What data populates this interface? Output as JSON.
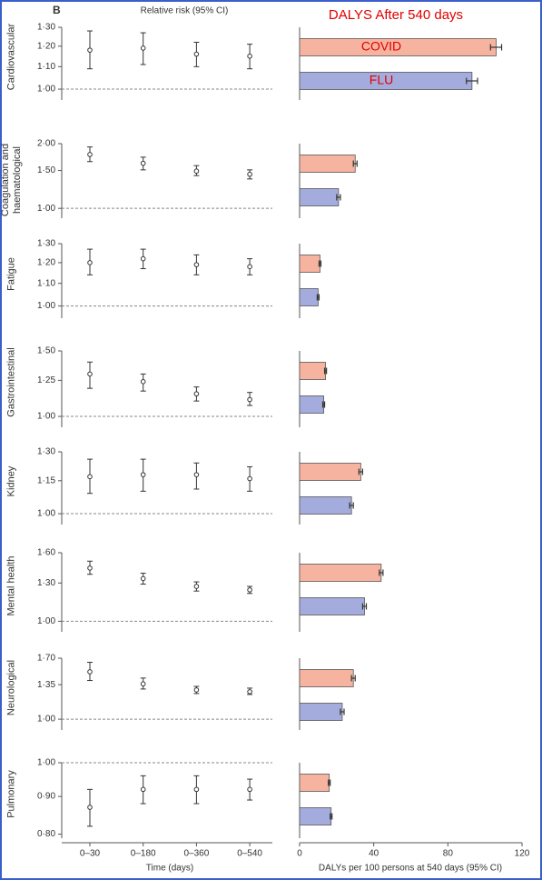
{
  "figure": {
    "panel_label": "B"
  },
  "chart_data": [
    {
      "type": "forest",
      "title": "Relative risk (95% CI)",
      "xlabel": "Time (days)",
      "categories": [
        "0–30",
        "0–180",
        "0–360",
        "0–540"
      ],
      "log_scale": true,
      "color": "#333333",
      "panels": [
        {
          "ylabel": "Cardiovascular",
          "ylim": [
            0.955,
            1.3
          ],
          "reference": 1,
          "yticks": [
            {
              "value": 1.0,
              "label": "1·00"
            },
            {
              "value": 1.1,
              "label": "1·10"
            },
            {
              "value": 1.2,
              "label": "1·20"
            },
            {
              "value": 1.3,
              "label": "1·30"
            }
          ],
          "values": [
            1.18,
            1.19,
            1.16,
            1.15
          ],
          "ci_low": [
            1.09,
            1.11,
            1.1,
            1.09
          ],
          "ci_high": [
            1.28,
            1.27,
            1.22,
            1.21
          ]
        },
        {
          "ylabel": "Coagulation and haematological",
          "ylim": [
            0.9,
            2.0
          ],
          "reference": 1,
          "yticks": [
            {
              "value": 1.0,
              "label": "1·00"
            },
            {
              "value": 1.5,
              "label": "1·50"
            },
            {
              "value": 2.0,
              "label": "2·00"
            }
          ],
          "values": [
            1.78,
            1.62,
            1.49,
            1.44
          ],
          "ci_low": [
            1.65,
            1.51,
            1.42,
            1.37
          ],
          "ci_high": [
            1.93,
            1.73,
            1.58,
            1.51
          ]
        },
        {
          "ylabel": "Fatigue",
          "ylim": [
            0.95,
            1.3
          ],
          "reference": 1,
          "yticks": [
            {
              "value": 1.0,
              "label": "1·00"
            },
            {
              "value": 1.1,
              "label": "1·10"
            },
            {
              "value": 1.2,
              "label": "1·20"
            },
            {
              "value": 1.3,
              "label": "1·30"
            }
          ],
          "values": [
            1.2,
            1.22,
            1.19,
            1.18
          ],
          "ci_low": [
            1.14,
            1.17,
            1.14,
            1.14
          ],
          "ci_high": [
            1.27,
            1.27,
            1.24,
            1.22
          ]
        },
        {
          "ylabel": "Gastrointestinal",
          "ylim": [
            0.935,
            1.5
          ],
          "reference": 1,
          "yticks": [
            {
              "value": 1.0,
              "label": "1·00"
            },
            {
              "value": 1.25,
              "label": "1·25"
            },
            {
              "value": 1.5,
              "label": "1·50"
            }
          ],
          "values": [
            1.3,
            1.24,
            1.15,
            1.11
          ],
          "ci_low": [
            1.19,
            1.17,
            1.1,
            1.07
          ],
          "ci_high": [
            1.4,
            1.3,
            1.2,
            1.16
          ]
        },
        {
          "ylabel": "Kidney",
          "ylim": [
            0.955,
            1.3
          ],
          "reference": 1,
          "yticks": [
            {
              "value": 1.0,
              "label": "1·00"
            },
            {
              "value": 1.15,
              "label": "1·15"
            },
            {
              "value": 1.3,
              "label": "1·30"
            }
          ],
          "values": [
            1.17,
            1.18,
            1.18,
            1.16
          ],
          "ci_low": [
            1.09,
            1.1,
            1.11,
            1.1
          ],
          "ci_high": [
            1.26,
            1.26,
            1.24,
            1.22
          ]
        },
        {
          "ylabel": "Mental health",
          "ylim": [
            0.93,
            1.6
          ],
          "reference": 1,
          "yticks": [
            {
              "value": 1.0,
              "label": "1·00"
            },
            {
              "value": 1.3,
              "label": "1·30"
            },
            {
              "value": 1.6,
              "label": "1·60"
            }
          ],
          "values": [
            1.44,
            1.34,
            1.27,
            1.24
          ],
          "ci_low": [
            1.38,
            1.29,
            1.23,
            1.21
          ],
          "ci_high": [
            1.51,
            1.39,
            1.31,
            1.27
          ]
        },
        {
          "ylabel": "Neurological",
          "ylim": [
            0.91,
            1.7
          ],
          "reference": 1,
          "yticks": [
            {
              "value": 1.0,
              "label": "1·00"
            },
            {
              "value": 1.35,
              "label": "1·35"
            },
            {
              "value": 1.7,
              "label": "1·70"
            }
          ],
          "values": [
            1.51,
            1.36,
            1.29,
            1.27
          ],
          "ci_low": [
            1.4,
            1.3,
            1.25,
            1.24
          ],
          "ci_high": [
            1.64,
            1.43,
            1.33,
            1.31
          ]
        },
        {
          "ylabel": "Pulmonary",
          "ylim": [
            0.79,
            1.0
          ],
          "reference": 1,
          "yticks": [
            {
              "value": 0.8,
              "label": "0·80"
            },
            {
              "value": 0.9,
              "label": "0·90"
            },
            {
              "value": 1.0,
              "label": "1·00"
            }
          ],
          "values": [
            0.87,
            0.92,
            0.92,
            0.92
          ],
          "ci_low": [
            0.82,
            0.88,
            0.88,
            0.89
          ],
          "ci_high": [
            0.92,
            0.96,
            0.96,
            0.95
          ]
        }
      ]
    },
    {
      "type": "bar",
      "title": "DALYS After 540 days",
      "xlabel": "DALYs per 100 persons at 540 days (95% CI)",
      "xlim": [
        0,
        120
      ],
      "xticks": [
        0,
        40,
        80,
        120
      ],
      "legend_color": "#e00000",
      "series": [
        {
          "name": "COVID",
          "color": "#f6b4a0",
          "values": [
            106,
            30,
            11,
            14,
            33,
            44,
            29,
            16
          ],
          "errors": [
            3,
            1,
            0.5,
            0.5,
            1,
            1,
            1,
            0.5
          ]
        },
        {
          "name": "FLU",
          "color": "#a4acde",
          "values": [
            93,
            21,
            10,
            13,
            28,
            35,
            23,
            17
          ],
          "errors": [
            3,
            1,
            0.5,
            0.5,
            1,
            1,
            1,
            0.5
          ]
        }
      ]
    }
  ]
}
